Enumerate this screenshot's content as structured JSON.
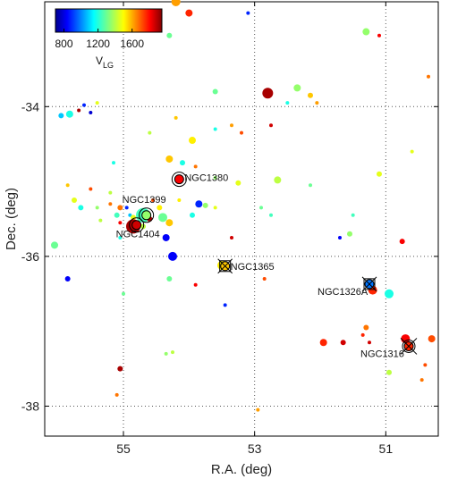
{
  "chart_data": {
    "type": "scatter",
    "xlabel": "R.A. (deg)",
    "ylabel": "Dec. (deg)",
    "xlim": [
      56.2,
      50.2
    ],
    "ylim": [
      -38.4,
      -32.6
    ],
    "x_ticks": [
      55,
      53,
      51
    ],
    "y_ticks": [
      -34,
      -36,
      -38
    ],
    "grid": "dotted",
    "colorbar": {
      "label_main": "V",
      "label_sub": "LG",
      "range": [
        700,
        1950
      ],
      "ticks": [
        800,
        1200,
        1600
      ],
      "colormap": "jet",
      "position": "top-left"
    },
    "points": [
      [
        54.2,
        -32.6,
        5,
        1600
      ],
      [
        54.0,
        -32.75,
        4,
        1750
      ],
      [
        53.1,
        -32.75,
        2,
        900
      ],
      [
        54.3,
        -33.05,
        3,
        1300
      ],
      [
        51.3,
        -33.0,
        4,
        1350
      ],
      [
        51.1,
        -33.05,
        2,
        1800
      ],
      [
        50.35,
        -33.6,
        2,
        1650
      ],
      [
        52.8,
        -33.82,
        6,
        1900
      ],
      [
        52.35,
        -33.75,
        4,
        1350
      ],
      [
        52.15,
        -33.85,
        3,
        1550
      ],
      [
        53.6,
        -33.8,
        3,
        1300
      ],
      [
        52.5,
        -33.95,
        2,
        1200
      ],
      [
        52.05,
        -33.95,
        2,
        1600
      ],
      [
        55.4,
        -33.95,
        2,
        1450
      ],
      [
        55.6,
        -33.98,
        2,
        900
      ],
      [
        55.68,
        -34.05,
        2,
        1900
      ],
      [
        55.5,
        -34.08,
        2,
        800
      ],
      [
        55.82,
        -34.1,
        4,
        1200
      ],
      [
        55.95,
        -34.12,
        3,
        1100
      ],
      [
        54.2,
        -34.15,
        2,
        1550
      ],
      [
        54.6,
        -34.35,
        2,
        1400
      ],
      [
        53.35,
        -34.25,
        2,
        1600
      ],
      [
        53.2,
        -34.35,
        2,
        1700
      ],
      [
        52.75,
        -34.25,
        2,
        1850
      ],
      [
        53.95,
        -34.45,
        4,
        1500
      ],
      [
        53.6,
        -34.3,
        2,
        1200
      ],
      [
        50.6,
        -34.6,
        2,
        1450
      ],
      [
        55.15,
        -34.75,
        2,
        1200
      ],
      [
        54.3,
        -34.7,
        4,
        1550
      ],
      [
        54.1,
        -34.75,
        3,
        1200
      ],
      [
        53.9,
        -34.8,
        2,
        1650
      ],
      [
        53.6,
        -34.95,
        2,
        1350
      ],
      [
        53.25,
        -35.02,
        3,
        1450
      ],
      [
        52.65,
        -34.98,
        4,
        1400
      ],
      [
        52.15,
        -35.05,
        2,
        1300
      ],
      [
        51.1,
        -34.9,
        3,
        1450
      ],
      [
        55.85,
        -35.05,
        2,
        1550
      ],
      [
        55.5,
        -35.1,
        2,
        1700
      ],
      [
        55.2,
        -35.15,
        2,
        1400
      ],
      [
        55.75,
        -35.25,
        3,
        1450
      ],
      [
        55.65,
        -35.35,
        3,
        1200
      ],
      [
        55.4,
        -35.35,
        2,
        1350
      ],
      [
        55.2,
        -35.3,
        2,
        1650
      ],
      [
        55.05,
        -35.35,
        3,
        1650
      ],
      [
        54.95,
        -35.35,
        2,
        900
      ],
      [
        55.1,
        -35.45,
        3,
        1250
      ],
      [
        54.9,
        -35.45,
        2,
        1100
      ],
      [
        54.55,
        -35.25,
        2,
        1700
      ],
      [
        54.45,
        -35.35,
        3,
        1500
      ],
      [
        54.15,
        -35.25,
        2,
        1500
      ],
      [
        53.85,
        -35.3,
        4,
        900
      ],
      [
        53.75,
        -35.32,
        3,
        1350
      ],
      [
        53.6,
        -35.35,
        2,
        1450
      ],
      [
        55.35,
        -35.52,
        2,
        1400
      ],
      [
        55.05,
        -35.55,
        2,
        1800
      ],
      [
        54.85,
        -35.48,
        3,
        1450
      ],
      [
        54.7,
        -35.45,
        8,
        1250
      ],
      [
        54.6,
        -35.5,
        3,
        1900
      ],
      [
        54.4,
        -35.48,
        5,
        1300
      ],
      [
        54.3,
        -35.55,
        4,
        1550
      ],
      [
        53.95,
        -35.45,
        3,
        1200
      ],
      [
        52.9,
        -35.35,
        2,
        1300
      ],
      [
        52.75,
        -35.45,
        2,
        1250
      ],
      [
        51.5,
        -35.45,
        2,
        1250
      ],
      [
        55.05,
        -35.75,
        2,
        1200
      ],
      [
        54.85,
        -35.6,
        8,
        1900
      ],
      [
        54.7,
        -35.6,
        3,
        1400
      ],
      [
        54.35,
        -35.75,
        4,
        850
      ],
      [
        53.35,
        -35.75,
        2,
        1850
      ],
      [
        51.55,
        -35.7,
        3,
        1350
      ],
      [
        51.7,
        -35.75,
        2,
        850
      ],
      [
        50.75,
        -35.8,
        3,
        1800
      ],
      [
        56.05,
        -35.85,
        4,
        1300
      ],
      [
        54.25,
        -36.0,
        5,
        850
      ],
      [
        53.5,
        -36.12,
        5,
        1500
      ],
      [
        54.3,
        -36.3,
        3,
        1300
      ],
      [
        53.9,
        -36.38,
        2,
        1800
      ],
      [
        52.85,
        -36.3,
        2,
        1700
      ],
      [
        55.85,
        -36.3,
        3,
        850
      ],
      [
        55.0,
        -36.5,
        2,
        1300
      ],
      [
        53.45,
        -36.65,
        2,
        900
      ],
      [
        51.25,
        -36.4,
        3,
        1000
      ],
      [
        51.2,
        -36.45,
        5,
        1750
      ],
      [
        50.95,
        -36.5,
        5,
        1200
      ],
      [
        51.3,
        -36.95,
        3,
        1650
      ],
      [
        51.35,
        -37.05,
        2,
        1750
      ],
      [
        51.95,
        -37.15,
        4,
        1750
      ],
      [
        51.65,
        -37.15,
        3,
        1850
      ],
      [
        51.25,
        -37.15,
        2,
        1850
      ],
      [
        50.7,
        -37.1,
        5,
        1800
      ],
      [
        50.3,
        -37.1,
        4,
        1700
      ],
      [
        50.65,
        -37.2,
        5,
        1800
      ],
      [
        54.35,
        -37.3,
        2,
        1350
      ],
      [
        54.25,
        -37.28,
        2,
        1400
      ],
      [
        50.95,
        -37.55,
        3,
        1400
      ],
      [
        50.4,
        -37.45,
        2,
        1700
      ],
      [
        55.05,
        -37.5,
        3,
        1900
      ],
      [
        50.45,
        -37.65,
        2,
        1650
      ],
      [
        55.1,
        -37.85,
        2,
        1650
      ],
      [
        52.95,
        -38.05,
        2,
        1600
      ]
    ],
    "markers": [
      {
        "label": "NGC1380",
        "x": 54.15,
        "y": -34.97,
        "v": 1800,
        "style": "circle"
      },
      {
        "label": "NGC1399",
        "x": 54.65,
        "y": -35.45,
        "v": 1350,
        "style": "circle"
      },
      {
        "label": "NGC1404",
        "x": 54.8,
        "y": -35.58,
        "v": 1850,
        "style": "circle"
      },
      {
        "label": "NGC1365",
        "x": 53.45,
        "y": -36.13,
        "v": 1550,
        "style": "square"
      },
      {
        "label": "NGC1326A",
        "x": 51.25,
        "y": -36.37,
        "v": 1000,
        "style": "square"
      },
      {
        "label": "NGC1316",
        "x": 50.65,
        "y": -37.2,
        "v": 1750,
        "style": "circle-x"
      }
    ]
  }
}
